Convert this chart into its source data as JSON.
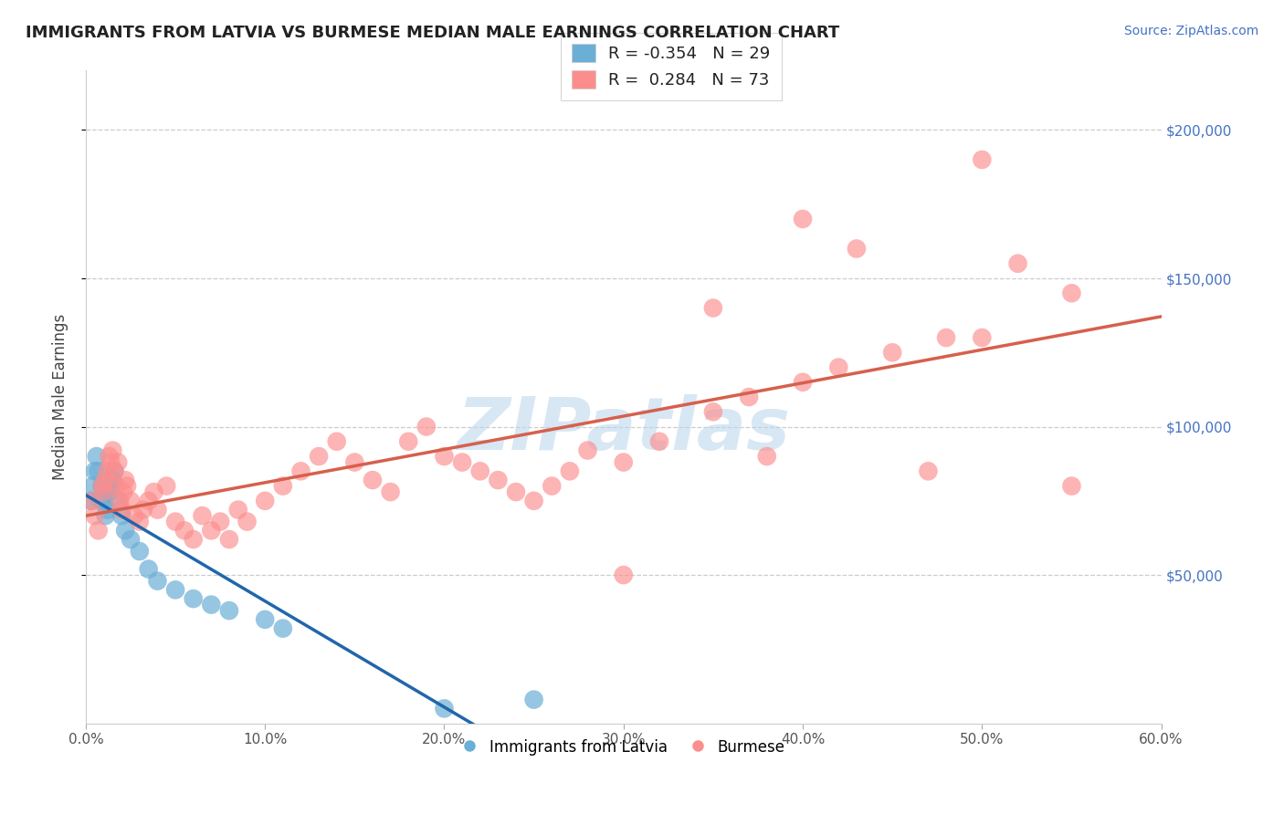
{
  "title": "IMMIGRANTS FROM LATVIA VS BURMESE MEDIAN MALE EARNINGS CORRELATION CHART",
  "source": "Source: ZipAtlas.com",
  "ylabel": "Median Male Earnings",
  "legend_entries": [
    "Immigrants from Latvia",
    "Burmese"
  ],
  "legend_r": [
    -0.354,
    0.284
  ],
  "legend_n": [
    29,
    73
  ],
  "xlim": [
    0.0,
    60.0
  ],
  "ylim": [
    0,
    220000
  ],
  "yticks_right": [
    50000,
    100000,
    150000,
    200000
  ],
  "ytick_labels_right": [
    "$50,000",
    "$100,000",
    "$150,000",
    "$200,000"
  ],
  "xticks": [
    0.0,
    10.0,
    20.0,
    30.0,
    40.0,
    50.0,
    60.0
  ],
  "xtick_labels": [
    "0.0%",
    "10.0%",
    "20.0%",
    "30.0%",
    "40.0%",
    "50.0%",
    "60.0%"
  ],
  "color_blue": "#6baed6",
  "color_pink": "#fc8d8d",
  "color_line_blue": "#2166ac",
  "color_line_pink": "#d6604d",
  "watermark": "ZIPatlas",
  "blue_x": [
    0.3,
    0.4,
    0.5,
    0.6,
    0.7,
    0.8,
    0.9,
    1.0,
    1.1,
    1.2,
    1.3,
    1.4,
    1.5,
    1.6,
    1.8,
    2.0,
    2.2,
    2.5,
    3.0,
    3.5,
    4.0,
    5.0,
    6.0,
    7.0,
    8.0,
    10.0,
    11.0,
    20.0,
    25.0
  ],
  "blue_y": [
    75000,
    80000,
    85000,
    90000,
    85000,
    75000,
    80000,
    75000,
    70000,
    72000,
    78000,
    80000,
    82000,
    85000,
    75000,
    70000,
    65000,
    62000,
    58000,
    52000,
    48000,
    45000,
    42000,
    40000,
    38000,
    35000,
    32000,
    5000,
    8000
  ],
  "pink_x": [
    0.3,
    0.5,
    0.7,
    0.9,
    1.0,
    1.1,
    1.2,
    1.3,
    1.4,
    1.5,
    1.6,
    1.7,
    1.8,
    1.9,
    2.0,
    2.1,
    2.2,
    2.3,
    2.5,
    2.7,
    3.0,
    3.2,
    3.5,
    3.8,
    4.0,
    4.5,
    5.0,
    5.5,
    6.0,
    6.5,
    7.0,
    7.5,
    8.0,
    8.5,
    9.0,
    10.0,
    11.0,
    12.0,
    13.0,
    14.0,
    15.0,
    16.0,
    17.0,
    18.0,
    19.0,
    20.0,
    21.0,
    22.0,
    23.0,
    24.0,
    25.0,
    26.0,
    27.0,
    28.0,
    30.0,
    32.0,
    35.0,
    37.0,
    40.0,
    42.0,
    45.0,
    48.0,
    50.0,
    52.0,
    55.0,
    30.0,
    35.0,
    38.0,
    40.0,
    43.0,
    47.0,
    50.0,
    55.0
  ],
  "pink_y": [
    75000,
    70000,
    65000,
    80000,
    78000,
    82000,
    85000,
    90000,
    88000,
    92000,
    85000,
    80000,
    88000,
    75000,
    72000,
    78000,
    82000,
    80000,
    75000,
    70000,
    68000,
    72000,
    75000,
    78000,
    72000,
    80000,
    68000,
    65000,
    62000,
    70000,
    65000,
    68000,
    62000,
    72000,
    68000,
    75000,
    80000,
    85000,
    90000,
    95000,
    88000,
    82000,
    78000,
    95000,
    100000,
    90000,
    88000,
    85000,
    82000,
    78000,
    75000,
    80000,
    85000,
    92000,
    88000,
    95000,
    105000,
    110000,
    115000,
    120000,
    125000,
    130000,
    190000,
    155000,
    145000,
    50000,
    140000,
    90000,
    170000,
    160000,
    85000,
    130000,
    80000
  ]
}
